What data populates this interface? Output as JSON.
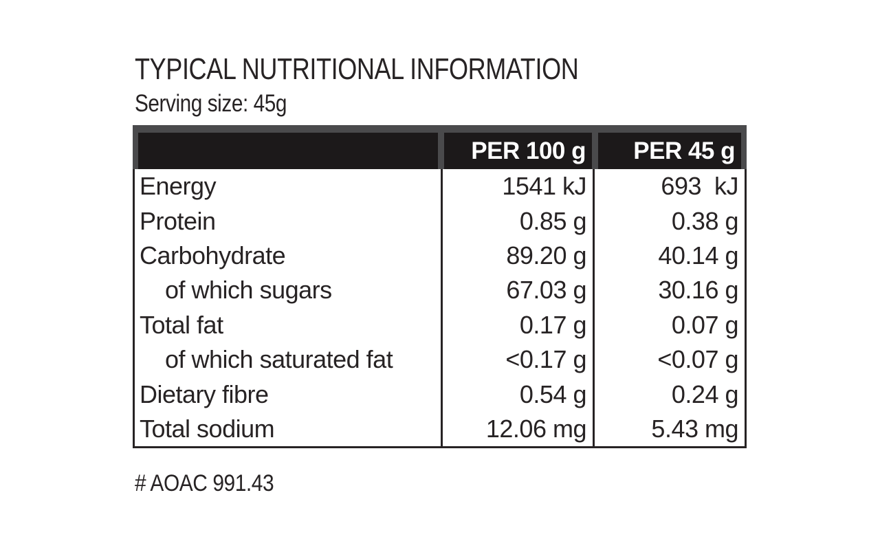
{
  "title": "TYPICAL NUTRITIONAL INFORMATION",
  "serving_size": "Serving size: 45g",
  "table": {
    "columns": [
      "",
      "PER 100 g",
      "PER 45 g"
    ],
    "rows": [
      {
        "label": "Energy",
        "per_100g": "1541 kJ",
        "per_45g": "693  kJ"
      },
      {
        "label": "Protein",
        "per_100g": "0.85 g",
        "per_45g": "0.38 g"
      },
      {
        "label": "Carbohydrate",
        "per_100g": "89.20 g",
        "per_45g": "40.14 g"
      },
      {
        "label": "of which sugars",
        "per_100g": "67.03 g",
        "per_45g": "30.16 g"
      },
      {
        "label": "Total fat",
        "per_100g": "0.17 g",
        "per_45g": "0.07 g"
      },
      {
        "label": "of which saturated fat",
        "per_100g": "<0.17 g",
        "per_45g": "<0.07 g"
      },
      {
        "label": "Dietary fibre",
        "per_100g": "0.54 g",
        "per_45g": "0.24 g"
      },
      {
        "label": "Total sodium",
        "per_100g": "12.06 mg",
        "per_45g": "5.43 mg"
      }
    ]
  },
  "footnote": "# AOAC 991.43",
  "colors": {
    "background": "#ffffff",
    "header_frame_gray": "#4a4a4c",
    "header_cell_black": "#1c191a",
    "header_text": "#ffffff",
    "body_text": "#272324",
    "border": "#272324"
  }
}
